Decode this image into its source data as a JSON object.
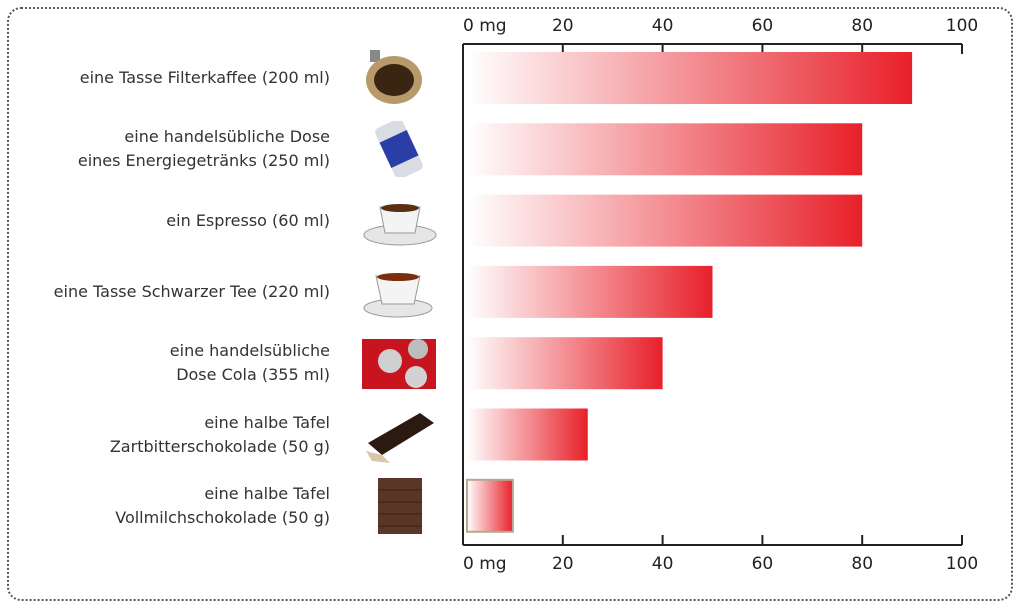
{
  "chart_data": {
    "type": "bar",
    "orientation": "horizontal",
    "title": "",
    "xlabel": "",
    "ylabel": "",
    "xlim": [
      0,
      100
    ],
    "ticks": [
      0,
      20,
      40,
      60,
      80,
      100
    ],
    "tick_labels": [
      "0 mg",
      "20",
      "40",
      "60",
      "80",
      "100"
    ],
    "categories": [
      "eine Tasse Filterkaffee (200 ml)",
      "eine handelsübliche Dose\neines Energiegetränks (250 ml)",
      "ein Espresso (60 ml)",
      "eine Tasse Schwarzer Tee (220 ml)",
      "eine handelsübliche\nDose Cola (355 ml)",
      "eine halbe Tafel\nZartbitterschokolade (50 g)",
      "eine halbe Tafel\nVollmilchschokolade (50 g)"
    ],
    "values": [
      90,
      80,
      80,
      50,
      40,
      25,
      10
    ],
    "unit": "mg",
    "icons": [
      "coffee-filter-icon",
      "energy-drink-can-icon",
      "espresso-cup-icon",
      "tea-cup-icon",
      "cola-cans-icon",
      "dark-chocolate-icon",
      "milk-chocolate-icon"
    ],
    "colors": {
      "bar_start": "#ffffff",
      "bar_end": "#e8202a",
      "axis": "#222222"
    }
  }
}
